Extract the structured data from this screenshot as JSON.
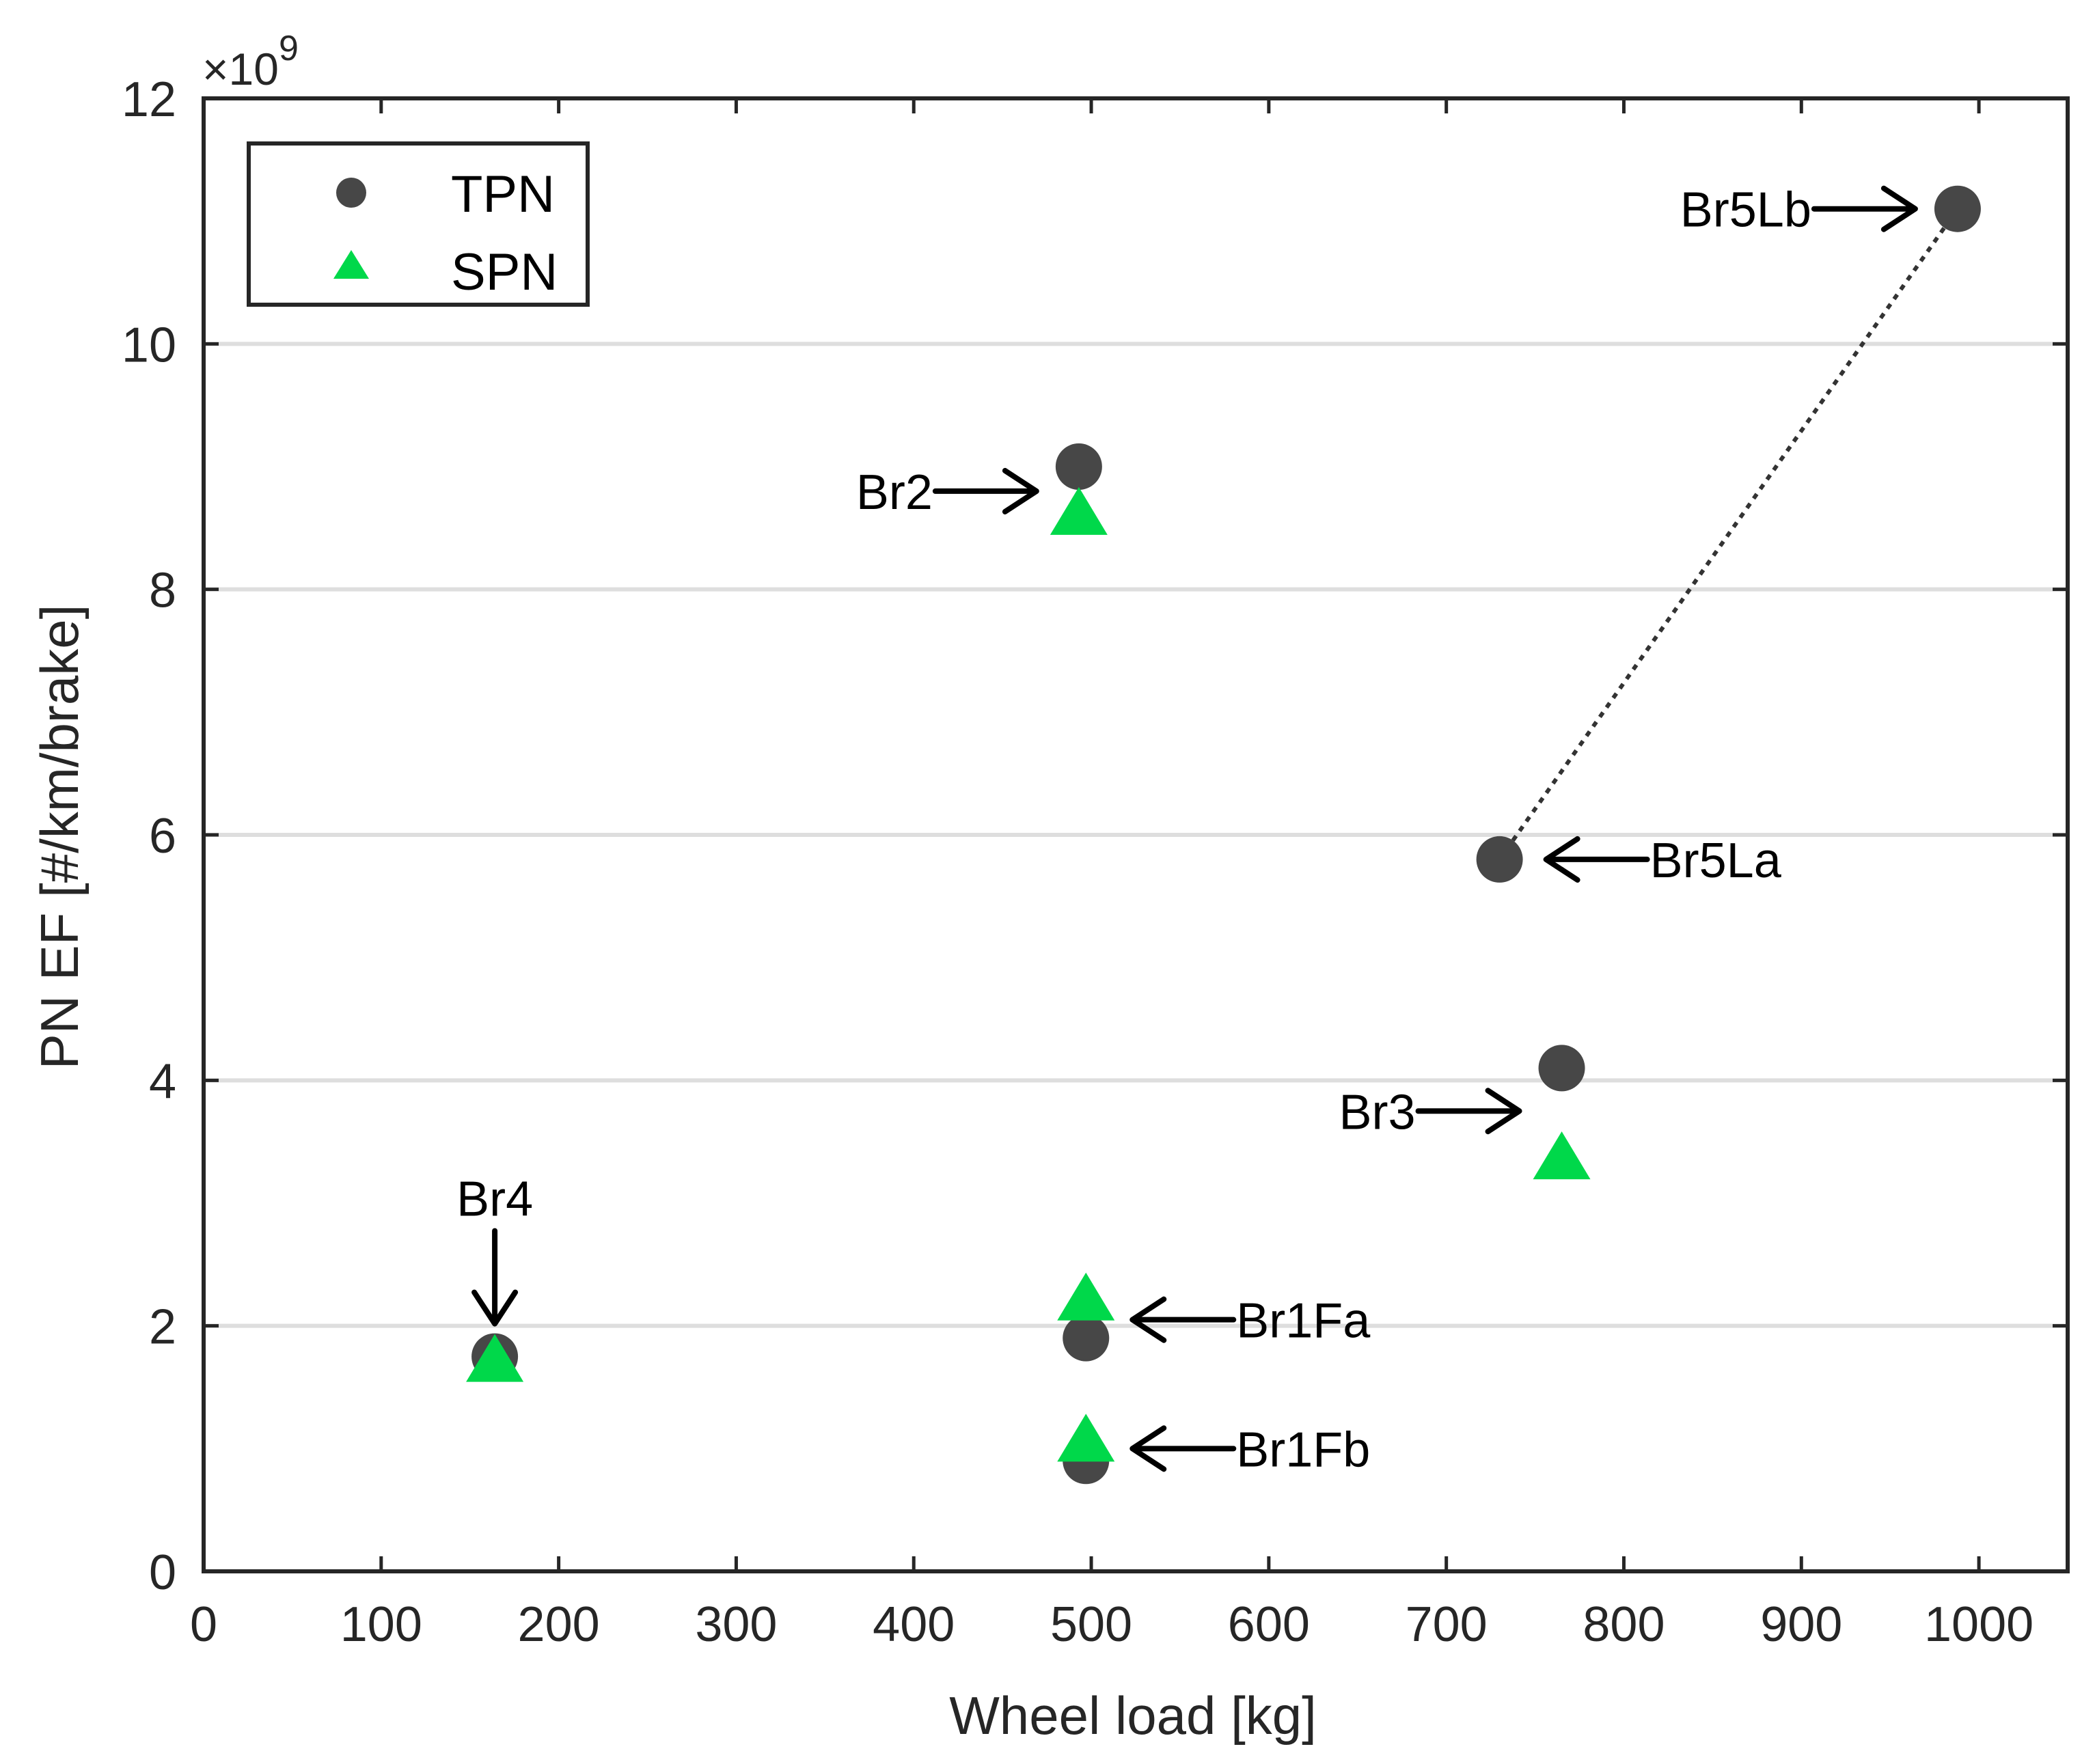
{
  "chart_data": {
    "type": "scatter",
    "title": "",
    "xlabel": "Wheel load [kg]",
    "ylabel": "PN EF [#/km/brake]",
    "xlim": [
      0,
      1050
    ],
    "ylim": [
      0,
      12
    ],
    "xticks": [
      0,
      100,
      200,
      300,
      400,
      500,
      600,
      700,
      800,
      900,
      1000
    ],
    "yticks": [
      0,
      2,
      4,
      6,
      8,
      10,
      12
    ],
    "ytick_labels": [
      "0",
      "2",
      "4",
      "6",
      "8",
      "10",
      "12"
    ],
    "xtick_labels": [
      "0",
      "100",
      "200",
      "300",
      "400",
      "500",
      "600",
      "700",
      "800",
      "900",
      "1000"
    ],
    "y_exponent": {
      "times": "×10",
      "power": "9"
    },
    "grid": "horizontal",
    "legend_position": "top-left",
    "series": [
      {
        "name": "TPN",
        "marker": "circle",
        "color": "#474747",
        "points": [
          {
            "x": 164,
            "y": 1.75
          },
          {
            "x": 493,
            "y": 9.0
          },
          {
            "x": 497,
            "y": 1.9
          },
          {
            "x": 497,
            "y": 0.9
          },
          {
            "x": 730,
            "y": 5.8
          },
          {
            "x": 765,
            "y": 4.1
          },
          {
            "x": 988,
            "y": 11.1
          }
        ]
      },
      {
        "name": "SPN",
        "marker": "triangle",
        "color": "#00d84a",
        "points": [
          {
            "x": 164,
            "y": 1.7
          },
          {
            "x": 493,
            "y": 8.6
          },
          {
            "x": 497,
            "y": 2.2
          },
          {
            "x": 497,
            "y": 1.05
          },
          {
            "x": 765,
            "y": 3.35
          }
        ]
      }
    ],
    "connector": {
      "from": {
        "x": 730,
        "y": 5.8
      },
      "to": {
        "x": 988,
        "y": 11.1
      },
      "style": "dotted"
    },
    "annotations": [
      {
        "text": "Br5Lb",
        "x": 988,
        "y": 11.1,
        "side": "left"
      },
      {
        "text": "Br2",
        "x": 493,
        "y": 8.8,
        "side": "left"
      },
      {
        "text": "Br5La",
        "x": 730,
        "y": 5.8,
        "side": "right"
      },
      {
        "text": "Br3",
        "x": 765,
        "y": 3.75,
        "side": "left"
      },
      {
        "text": "Br4",
        "x": 164,
        "y": 1.75,
        "side": "top"
      },
      {
        "text": "Br1Fa",
        "x": 497,
        "y": 2.05,
        "side": "right"
      },
      {
        "text": "Br1Fb",
        "x": 497,
        "y": 1.0,
        "side": "right"
      }
    ]
  }
}
